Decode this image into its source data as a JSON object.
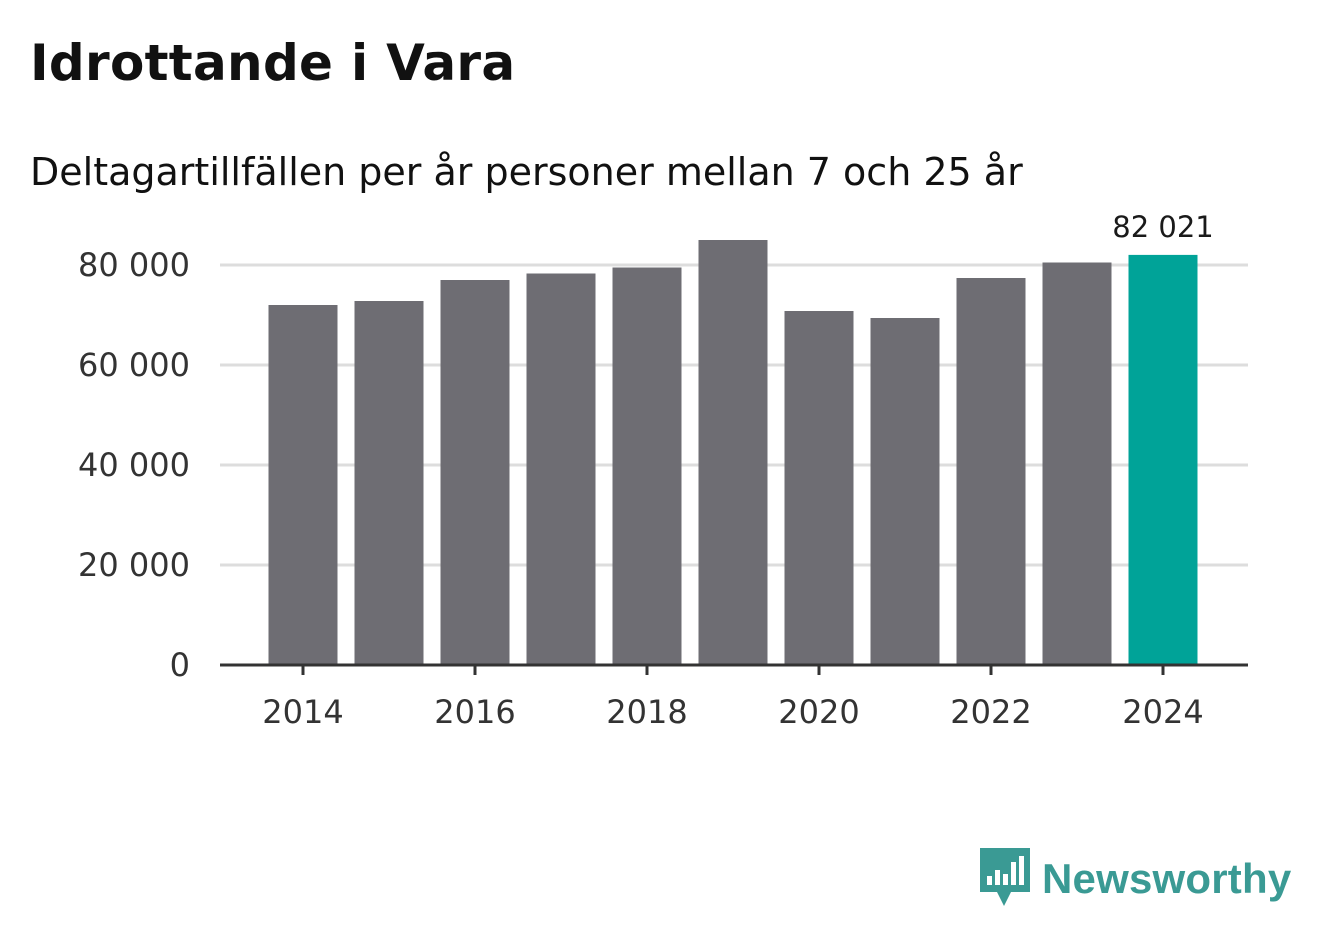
{
  "header": {
    "title": "Idrottande i Vara",
    "subtitle": "Deltagartillfällen per år personer mellan 7 och 25 år"
  },
  "chart_data": {
    "type": "bar",
    "title": "Idrottande i Vara",
    "subtitle": "Deltagartillfällen per år personer mellan 7 och 25 år",
    "xlabel": "",
    "ylabel": "",
    "categories": [
      "2014",
      "2015",
      "2016",
      "2017",
      "2018",
      "2019",
      "2020",
      "2021",
      "2022",
      "2023",
      "2024"
    ],
    "values": [
      72000,
      72800,
      77000,
      78300,
      79500,
      85000,
      70800,
      69400,
      77400,
      80500,
      82021
    ],
    "ylim": [
      0,
      85000
    ],
    "y_ticks": [
      0,
      20000,
      40000,
      60000,
      80000
    ],
    "y_tick_labels": [
      "0",
      "20 000",
      "40 000",
      "60 000",
      "80 000"
    ],
    "x_tick_labels": [
      "2014",
      "2016",
      "2018",
      "2020",
      "2022",
      "2024"
    ],
    "annotation": {
      "category": "2024",
      "label": "82 021"
    },
    "grid": true,
    "colors": {
      "bar": "#6e6d73",
      "highlight": "#00a398",
      "grid": "#dddddd",
      "axis": "#333333"
    }
  },
  "brand": {
    "name": "Newsworthy",
    "icon": "newsworthy-logo-icon",
    "color": "#3a9a94"
  }
}
